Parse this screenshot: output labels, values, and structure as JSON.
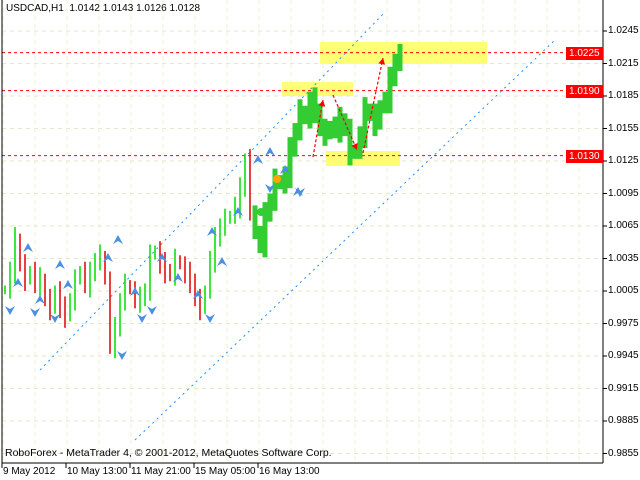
{
  "header": {
    "symbol": "USDCAD,H1",
    "ohlc": "1.0142 1.0143 1.0126 1.0128"
  },
  "footer": {
    "copyright": "RoboForex - MetaTrader 4, © 2001-2012, MetaQuotes Software Corp."
  },
  "colors": {
    "up": "#00dd00",
    "down": "#e00000",
    "level": "#ff0000",
    "zone": "#ffff66",
    "channel": "#1e90ff",
    "fractal": "#4a90e2"
  },
  "chart_data": {
    "type": "bar",
    "title": "USDCAD,H1",
    "ylim": [
      0.9845,
      1.026
    ],
    "y_ticks": [
      "1.0245",
      "1.0215",
      "1.0185",
      "1.0155",
      "1.0125",
      "1.0095",
      "1.0065",
      "1.0035",
      "1.0005",
      "0.9975",
      "0.9945",
      "0.9915",
      "0.9885",
      "0.9855"
    ],
    "x_ticks": [
      "9 May 2012",
      "10 May 13:00",
      "11 May 21:00",
      "15 May 05:00",
      "16 May 13:00"
    ],
    "grid": true,
    "closes": [
      1.0006,
      1.0024,
      1.0052,
      1.0029,
      1.0015,
      1.0024,
      1.0011,
      1.0015,
      0.9997,
      0.9988,
      1.0006,
      0.9988,
      0.9983,
      0.9997,
      1.0015,
      1.0024,
      1.0011,
      1.002,
      1.0034,
      1.0038,
      1.0015,
      0.9955,
      0.9969,
      0.9997,
      1.0011,
      1.0006,
      0.9997,
      0.9997,
      1.0006,
      1.0038,
      1.0043,
      1.0029,
      1.0024,
      1.002,
      1.0034,
      1.0029,
      1.002,
      1.0015,
      0.9997,
      0.9988,
      1.0006,
      1.0034,
      1.0052,
      1.0066,
      1.0071,
      1.0075,
      1.0084,
      1.0098,
      1.0126,
      1.008,
      1.0057,
      1.0048,
      1.0075,
      1.0089,
      1.0108,
      1.0103,
      1.0112,
      1.0135,
      1.0154,
      1.0172,
      1.0163,
      1.0181,
      1.0172,
      1.0154,
      1.0149,
      1.0158,
      1.0154,
      1.0163,
      1.0154,
      1.0131,
      1.0135,
      1.0149,
      1.0172,
      1.0168,
      1.0158,
      1.0177,
      1.0181,
      1.02,
      1.0218,
      1.0223
    ],
    "levels": [
      {
        "price": 1.0225,
        "label": "1.0225"
      },
      {
        "price": 1.019,
        "label": "1.0190"
      },
      {
        "price": 1.013,
        "label": "1.0130"
      }
    ]
  }
}
